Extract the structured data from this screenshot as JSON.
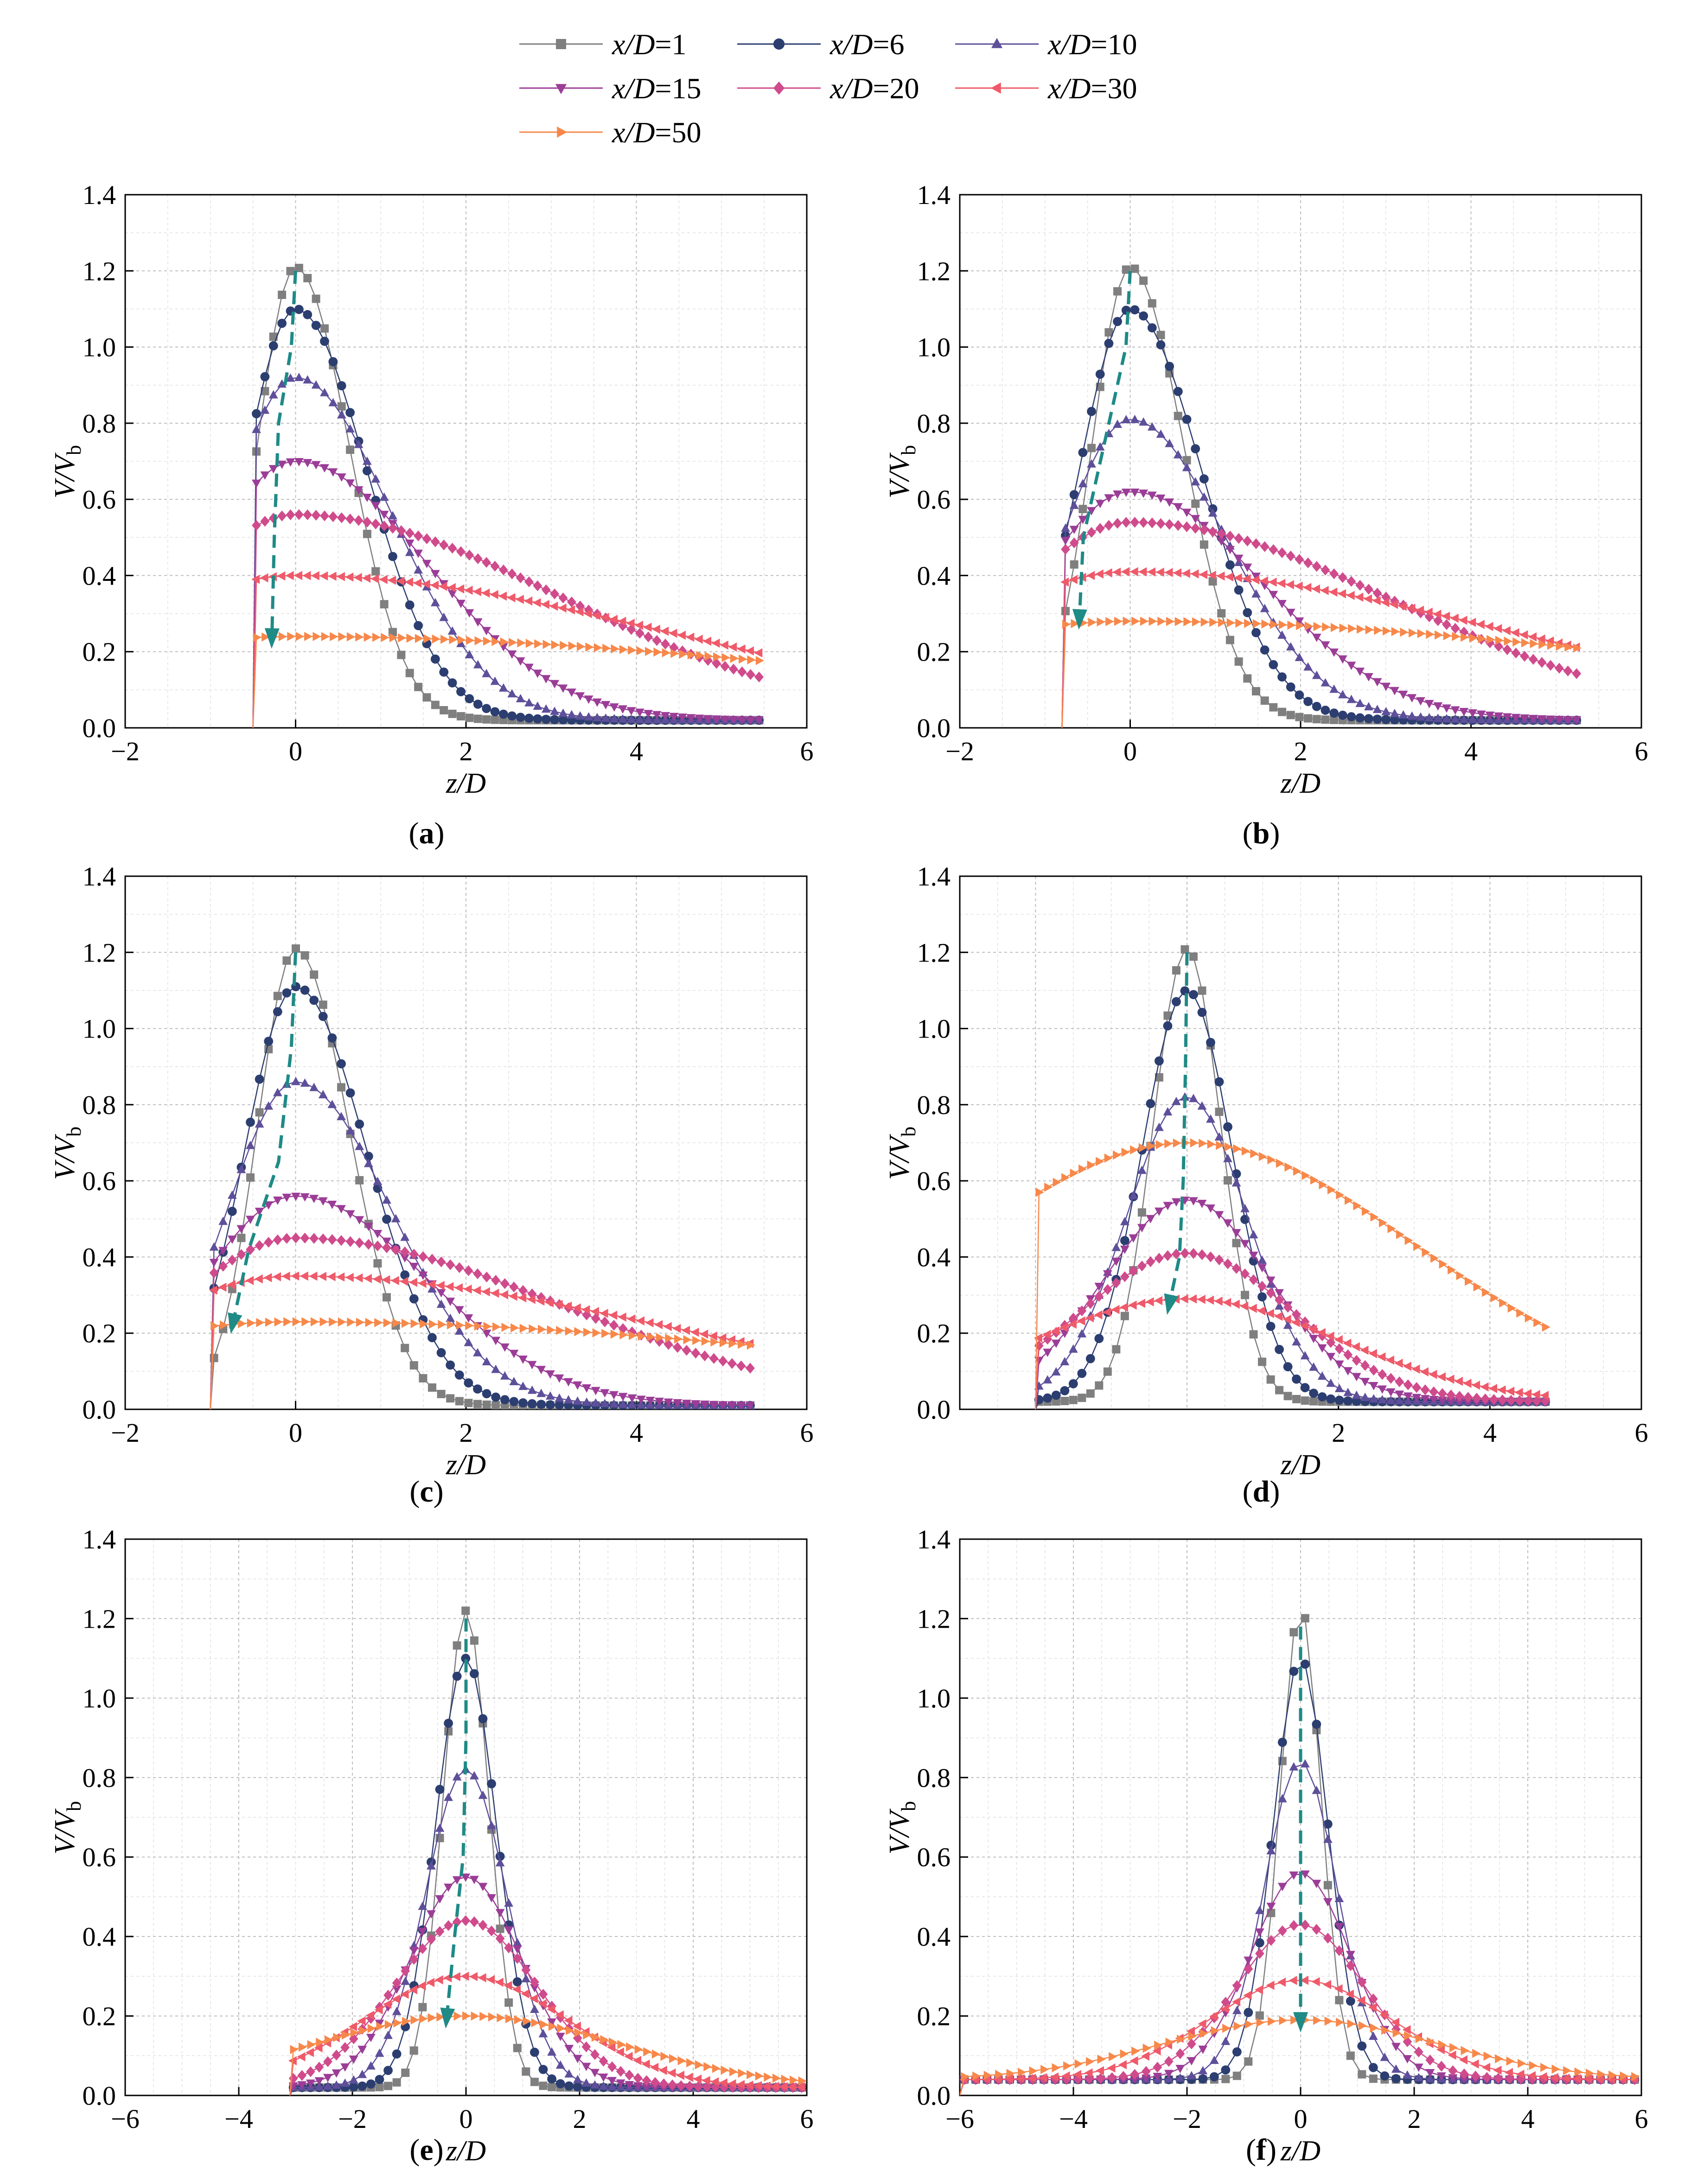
{
  "legend": {
    "series": [
      {
        "var": "x/D",
        "val": "=1",
        "color": "#7f7f7f",
        "marker": "square"
      },
      {
        "var": "x/D",
        "val": "=6",
        "color": "#2c3e70",
        "marker": "circle"
      },
      {
        "var": "x/D",
        "val": "=10",
        "color": "#5e4f9a",
        "marker": "triangle-up"
      },
      {
        "var": "x/D",
        "val": "=15",
        "color": "#9b3d97",
        "marker": "triangle-down"
      },
      {
        "var": "x/D",
        "val": "=20",
        "color": "#cf4b8c",
        "marker": "diamond"
      },
      {
        "var": "x/D",
        "val": "=30",
        "color": "#ef5a6a",
        "marker": "triangle-left"
      },
      {
        "var": "x/D",
        "val": "=50",
        "color": "#f7884a",
        "marker": "triangle-right"
      }
    ]
  },
  "arrow_color": "#1f8a86",
  "chart_data": [
    {
      "type": "line",
      "id": "a",
      "caption": "a",
      "xlabel": "z/D",
      "ylabel_main": "V/V",
      "ylabel_sub": "b",
      "xlim": [
        -2,
        6
      ],
      "ylim": [
        0,
        1.4
      ],
      "xticks": [
        "−2",
        "0",
        "2",
        "4",
        "6"
      ],
      "yticks": [
        "0.0",
        "0.2",
        "0.4",
        "0.6",
        "0.8",
        "1.0",
        "1.2",
        "1.4"
      ],
      "zmin": -0.5,
      "zmax": 5.5,
      "peaks": [
        1.21,
        1.1,
        0.92,
        0.7,
        0.56,
        0.4,
        0.24
      ],
      "floor": 0.02,
      "arrow": [
        [
          0,
          1.2
        ],
        [
          -0.05,
          1.0
        ],
        [
          -0.2,
          0.8
        ],
        [
          -0.25,
          0.5
        ],
        [
          -0.28,
          0.22
        ]
      ]
    },
    {
      "type": "line",
      "id": "b",
      "caption": "b",
      "xlabel": "z/D",
      "ylabel_main": "V/V",
      "ylabel_sub": "b",
      "xlim": [
        -2,
        6
      ],
      "ylim": [
        0,
        1.4
      ],
      "xticks": [
        "−2",
        "0",
        "2",
        "4",
        "6"
      ],
      "yticks": [
        "0.0",
        "0.2",
        "0.4",
        "0.6",
        "0.8",
        "1.0",
        "1.2",
        "1.4"
      ],
      "zmin": -0.8,
      "zmax": 5.3,
      "peaks": [
        1.21,
        1.1,
        0.81,
        0.62,
        0.54,
        0.41,
        0.28
      ],
      "floor": 0.02,
      "arrow": [
        [
          0,
          1.2
        ],
        [
          -0.05,
          1.0
        ],
        [
          -0.3,
          0.75
        ],
        [
          -0.55,
          0.5
        ],
        [
          -0.6,
          0.27
        ]
      ]
    },
    {
      "type": "line",
      "id": "c",
      "caption": "c",
      "xlabel": "z/D",
      "ylabel_main": "V/V",
      "ylabel_sub": "b",
      "xlim": [
        -2,
        6
      ],
      "ylim": [
        0,
        1.4
      ],
      "xticks": [
        "−2",
        "0",
        "2",
        "4",
        "6"
      ],
      "yticks": [
        "0.0",
        "0.2",
        "0.4",
        "0.6",
        "0.8",
        "1.0",
        "1.2",
        "1.4"
      ],
      "zmin": -1.0,
      "zmax": 5.4,
      "peaks": [
        1.21,
        1.11,
        0.86,
        0.56,
        0.45,
        0.35,
        0.23
      ],
      "floor": 0.01,
      "arrow": [
        [
          0,
          1.2
        ],
        [
          -0.05,
          0.95
        ],
        [
          -0.2,
          0.65
        ],
        [
          -0.55,
          0.42
        ],
        [
          -0.75,
          0.21
        ]
      ]
    },
    {
      "type": "line",
      "id": "d",
      "caption": "d",
      "xlabel": "z/D",
      "ylabel_main": "V/V",
      "ylabel_sub": "b",
      "xlim": [
        -3,
        6
      ],
      "ylim": [
        0,
        1.4
      ],
      "xticks": [
        "2",
        "4",
        "6"
      ],
      "xtick_vals": [
        2,
        4,
        6
      ],
      "yticks": [
        "0.0",
        "0.2",
        "0.4",
        "0.6",
        "0.8",
        "1.0",
        "1.2",
        "1.4"
      ],
      "zmin": -2.0,
      "zmax": 4.8,
      "peaks": [
        1.21,
        1.1,
        0.82,
        0.55,
        0.41,
        0.29,
        0.7
      ],
      "floor": 0.02,
      "arrow": [
        [
          0,
          1.2
        ],
        [
          -0.02,
          0.9
        ],
        [
          -0.05,
          0.6
        ],
        [
          -0.1,
          0.4
        ],
        [
          -0.25,
          0.26
        ]
      ]
    },
    {
      "type": "line",
      "id": "e",
      "caption": "e",
      "xlabel": "z/D",
      "ylabel_main": "V/V",
      "ylabel_sub": "b",
      "xlim": [
        -6,
        6
      ],
      "ylim": [
        0,
        1.4
      ],
      "xticks": [
        "−6",
        "−4",
        "−2",
        "0",
        "2",
        "4",
        "6"
      ],
      "yticks": [
        "0.0",
        "0.2",
        "0.4",
        "0.6",
        "0.8",
        "1.0",
        "1.2",
        "1.4"
      ],
      "zmin": -3.1,
      "zmax": 6.0,
      "peaks": [
        1.22,
        1.1,
        0.82,
        0.55,
        0.44,
        0.3,
        0.2
      ],
      "floor": 0.02,
      "arrow": [
        [
          0,
          1.2
        ],
        [
          0,
          0.9
        ],
        [
          -0.05,
          0.6
        ],
        [
          -0.2,
          0.4
        ],
        [
          -0.35,
          0.18
        ]
      ]
    },
    {
      "type": "line",
      "id": "f",
      "caption": "f",
      "xlabel": "z/D",
      "ylabel_main": "V/V",
      "ylabel_sub": "b",
      "xlim": [
        -6,
        6
      ],
      "ylim": [
        0,
        1.4
      ],
      "xticks": [
        "−6",
        "−4",
        "−2",
        "0",
        "2",
        "4",
        "6"
      ],
      "yticks": [
        "0.0",
        "0.2",
        "0.4",
        "0.6",
        "0.8",
        "1.0",
        "1.2",
        "1.4"
      ],
      "zmin": -6.0,
      "zmax": 6.0,
      "peaks": [
        1.23,
        1.1,
        0.84,
        0.56,
        0.43,
        0.29,
        0.19
      ],
      "floor": 0.04,
      "arrow": [
        [
          0,
          1.18
        ],
        [
          0,
          0.9
        ],
        [
          0,
          0.6
        ],
        [
          0,
          0.4
        ],
        [
          0,
          0.17
        ]
      ]
    }
  ]
}
